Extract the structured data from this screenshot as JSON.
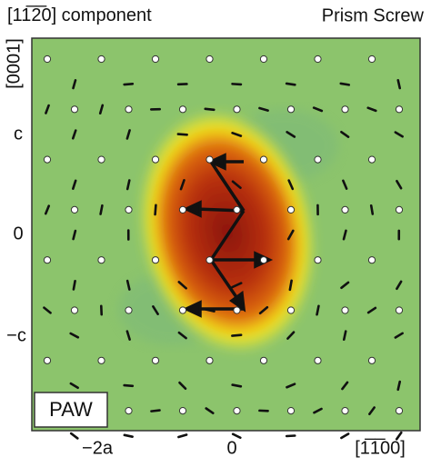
{
  "header": {
    "left": "[11̅2̅0]",
    "left_rest": " component",
    "right": "Prism Screw"
  },
  "axes": {
    "y_label": "[0001]",
    "y_ticks": [
      "c",
      "0",
      "−c"
    ],
    "x_ticks": [
      "−2a",
      "0"
    ],
    "x_label": "[1̅1̅00]"
  },
  "legend": {
    "method": "PAW"
  }
}
